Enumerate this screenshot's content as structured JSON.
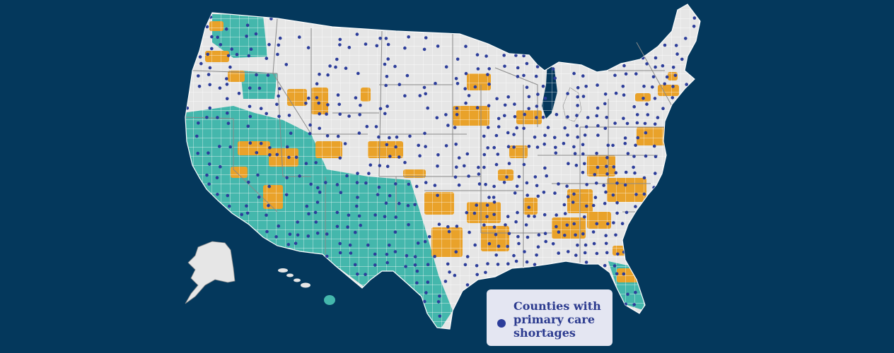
{
  "map": {
    "region": "United States",
    "category_colors": {
      "background": "#04385c",
      "land": "#e6e6e6",
      "county_border": "#ffffff",
      "state_border": "#8a8a8a",
      "teal_category": "#44b7ac",
      "orange_category": "#e9a22a",
      "shortage_dot": "#2c3d9a"
    },
    "legend": {
      "items": [
        {
          "label": "Counties with\nprimary care\nshortages",
          "color": "#2c3d9a",
          "marker": "dot"
        }
      ]
    }
  }
}
